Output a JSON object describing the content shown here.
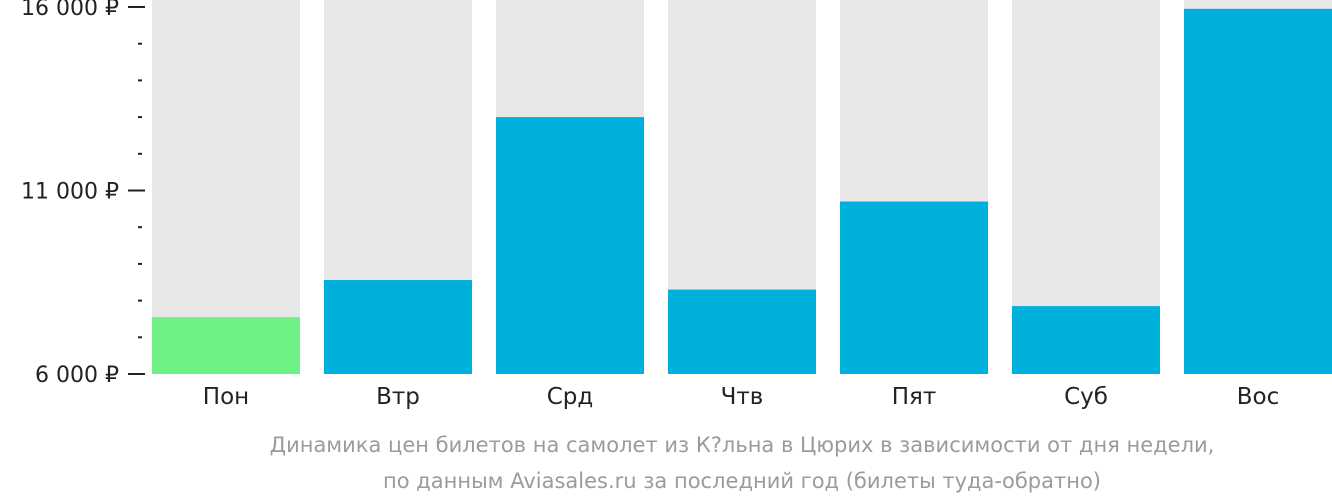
{
  "chart_data": {
    "type": "bar",
    "categories": [
      "Пон",
      "Втр",
      "Срд",
      "Чтв",
      "Пят",
      "Суб",
      "Вос"
    ],
    "values": [
      7550,
      8560,
      13000,
      8300,
      10700,
      7850,
      15950
    ],
    "ylim": [
      6000,
      16000
    ],
    "major_ticks": [
      {
        "value": 16000,
        "label": "16 000 ₽"
      },
      {
        "value": 11000,
        "label": "11 000 ₽"
      },
      {
        "value": 6000,
        "label": "6 000 ₽"
      }
    ],
    "minor_tick_step": 1000,
    "bar_background": true,
    "colors": {
      "min_bar": "#6ef285",
      "bar": "#00b0dc",
      "background_bar": "#e8e8e8",
      "axis_text": "#222222",
      "caption_text": "#9b9b9b"
    },
    "caption_lines": [
      "Динамика цен билетов на самолет из К?льна в Цюрих в зависимости от дня недели,",
      "по данным Aviasales.ru за последний год (билеты туда-обратно)"
    ]
  }
}
